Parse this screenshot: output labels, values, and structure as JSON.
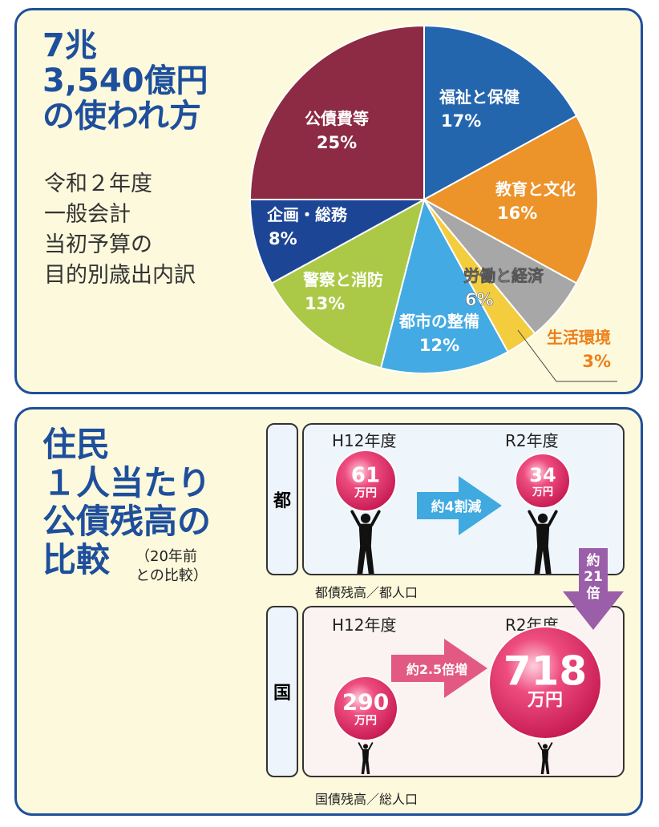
{
  "top": {
    "title_lines": [
      "7兆",
      "3,540億円",
      "の使われ方"
    ],
    "sub_lines": [
      "令和２年度",
      "一般会計",
      "当初予算の",
      "目的別歳出内訳"
    ]
  },
  "chart_data": [
    {
      "type": "pie",
      "title": "7兆3,540億円の使われ方",
      "slices": [
        {
          "label": "福祉と保健",
          "value": 17,
          "color": "#2466ae"
        },
        {
          "label": "教育と文化",
          "value": 16,
          "color": "#ec932a"
        },
        {
          "label": "労働と経済",
          "value": 6,
          "color": "#a7a7a7"
        },
        {
          "label": "生活環境",
          "value": 3,
          "color": "#f3cd3e"
        },
        {
          "label": "都市の整備",
          "value": 12,
          "color": "#43aae3"
        },
        {
          "label": "警察と消防",
          "value": 13,
          "color": "#abc947"
        },
        {
          "label": "企画・総務",
          "value": 8,
          "color": "#1d4596"
        },
        {
          "label": "公債費等",
          "value": 25,
          "color": "#8c2b43"
        }
      ],
      "unit": "%"
    },
    {
      "type": "bar",
      "title": "住民１人当たり公債残高の比較",
      "categories": [
        "H12年度",
        "R2年度"
      ],
      "unit": "万円",
      "series": [
        {
          "name": "都",
          "values": [
            61,
            34
          ]
        },
        {
          "name": "国",
          "values": [
            290,
            718
          ]
        }
      ]
    }
  ],
  "bottom": {
    "title_lines": [
      "住民",
      "１人当たり",
      "公債残高の",
      "比較"
    ],
    "note_lines": [
      "（20年前",
      "との比較）"
    ],
    "tokyo": {
      "tag": "都",
      "year_old": "H12年度",
      "year_new": "R2年度",
      "old_value": "61",
      "new_value": "34",
      "unit": "万円",
      "change": "約4割減",
      "caption": "都債残高／都人口"
    },
    "national": {
      "tag": "国",
      "year_old": "H12年度",
      "year_new": "R2年度",
      "old_value": "290",
      "new_value": "718",
      "unit": "万円",
      "change": "約2.5倍増",
      "caption": "国債残高／総人口"
    },
    "ratio_lines": [
      "約",
      "21",
      "倍"
    ],
    "colors": {
      "blue_arrow": "#3fa9e0",
      "pink_arrow": "#e25a84",
      "purple_arrow": "#9a5fa8",
      "ball": "#d81f5e"
    }
  }
}
